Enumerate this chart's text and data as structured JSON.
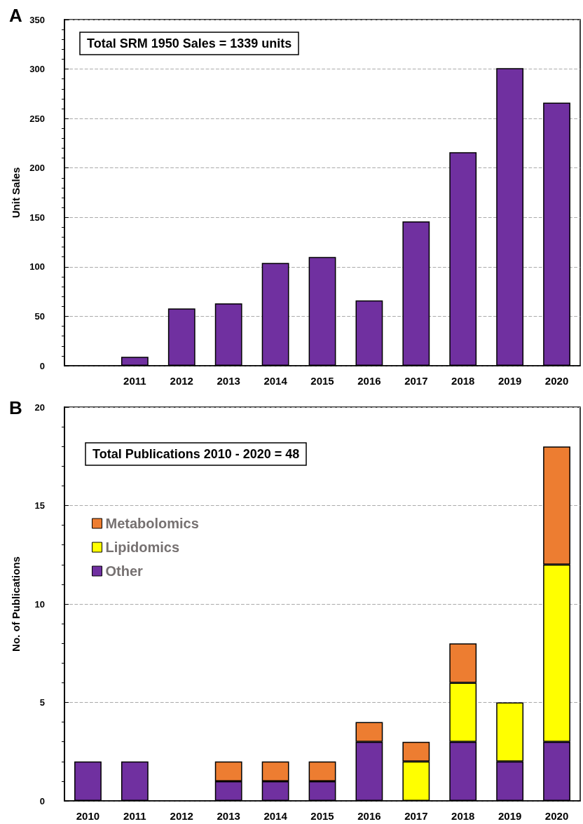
{
  "chart_data": [
    {
      "type": "bar",
      "annotations": [
        "A",
        "Total SRM 1950 Sales = 1339 units"
      ],
      "ylabel": "Unit Sales",
      "categories": [
        null,
        "2011",
        "2012",
        "2013",
        "2014",
        "2015",
        "2016",
        "2017",
        "2018",
        "2019",
        "2020"
      ],
      "values": [
        null,
        9,
        58,
        63,
        104,
        110,
        66,
        146,
        216,
        301,
        266
      ],
      "color": "#7030a0",
      "ylim": [
        0,
        350
      ],
      "yticks": [
        0,
        {
          "value": 10,
          "label": null
        },
        {
          "value": 20,
          "label": null
        },
        {
          "value": 30,
          "label": null
        },
        {
          "value": 40,
          "label": null
        },
        50,
        {
          "value": 60,
          "label": null
        },
        {
          "value": 70,
          "label": null
        },
        {
          "value": 80,
          "label": null
        },
        {
          "value": 90,
          "label": null
        },
        100,
        {
          "value": 110,
          "label": null
        },
        {
          "value": 120,
          "label": null
        },
        {
          "value": 130,
          "label": null
        },
        {
          "value": 140,
          "label": null
        },
        150,
        {
          "value": 160,
          "label": null
        },
        {
          "value": 170,
          "label": null
        },
        {
          "value": 180,
          "label": null
        },
        {
          "value": 190,
          "label": null
        },
        200,
        {
          "value": 210,
          "label": null
        },
        {
          "value": 220,
          "label": null
        },
        {
          "value": 230,
          "label": null
        },
        {
          "value": 240,
          "label": null
        },
        250,
        {
          "value": 260,
          "label": null
        },
        {
          "value": 270,
          "label": null
        },
        {
          "value": 280,
          "label": null
        },
        {
          "value": 290,
          "label": null
        },
        300,
        {
          "value": 310,
          "label": null
        },
        {
          "value": 320,
          "label": null
        },
        {
          "value": 330,
          "label": null
        },
        {
          "value": 340,
          "label": null
        },
        350
      ],
      "grid": "y"
    },
    {
      "type": "bar",
      "annotations": [
        "B",
        "Total Publications 2010 - 2020 = 48"
      ],
      "ylabel": "No. of Publications",
      "categories": [
        "2010",
        "2011",
        "2012",
        "2013",
        "2014",
        "2015",
        "2016",
        "2017",
        "2018",
        "2019",
        "2020"
      ],
      "stacked": true,
      "series": [
        {
          "name": "Other",
          "color": "#7030a0",
          "values": [
            2,
            2,
            0,
            1,
            1,
            1,
            3,
            0,
            3,
            2,
            3
          ]
        },
        {
          "name": "Lipidomics",
          "color": "#ffff00",
          "values": [
            0,
            0,
            0,
            0,
            0,
            0,
            0,
            2,
            3,
            3,
            9
          ]
        },
        {
          "name": "Metabolomics",
          "color": "#ed7d31",
          "values": [
            0,
            0,
            0,
            1,
            1,
            1,
            1,
            1,
            2,
            0,
            6
          ]
        }
      ],
      "ylim": [
        0,
        20
      ],
      "yticks": [
        0,
        {
          "value": 1,
          "label": null
        },
        {
          "value": 2,
          "label": null
        },
        {
          "value": 3,
          "label": null
        },
        {
          "value": 4,
          "label": null
        },
        5,
        {
          "value": 6,
          "label": null
        },
        {
          "value": 7,
          "label": null
        },
        {
          "value": 8,
          "label": null
        },
        {
          "value": 9,
          "label": null
        },
        10,
        {
          "value": 11,
          "label": null
        },
        {
          "value": 12,
          "label": null
        },
        {
          "value": 13,
          "label": null
        },
        {
          "value": 14,
          "label": null
        },
        15,
        {
          "value": 16,
          "label": null
        },
        {
          "value": 17,
          "label": null
        },
        {
          "value": 18,
          "label": null
        },
        {
          "value": 19,
          "label": null
        },
        20
      ],
      "grid": "y",
      "legend": "top left"
    }
  ]
}
